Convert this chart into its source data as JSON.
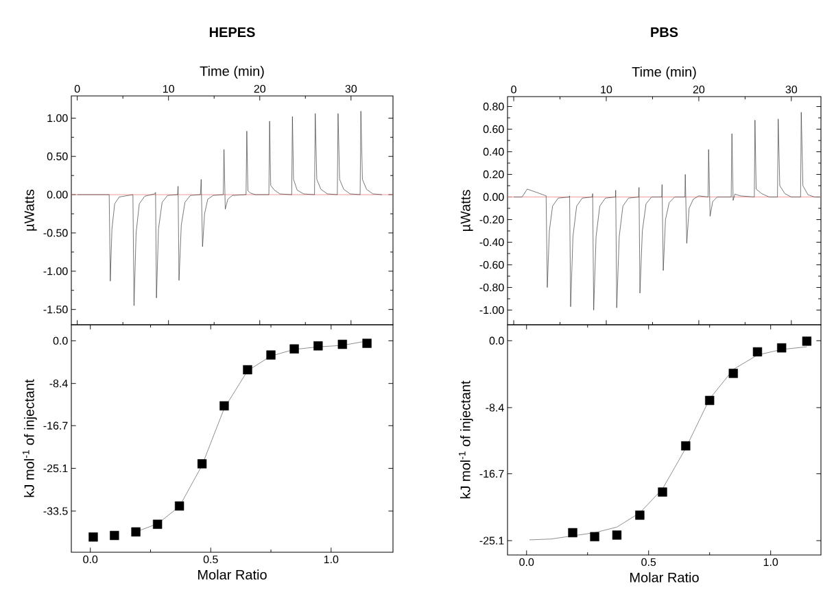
{
  "chart_data": [
    {
      "type": "line",
      "title": "HEPES",
      "xlabel": "Time (min)",
      "ylabel": "µWatts",
      "xlim": [
        -0.65,
        34.6
      ],
      "xticks": [
        0,
        10,
        20,
        30
      ],
      "ylim": [
        -1.7,
        1.29
      ],
      "yticks": [
        {
          "value": 1,
          "label": "1.00"
        },
        {
          "value": 0.5,
          "label": "0.50"
        },
        {
          "value": 0,
          "label": "0.00"
        },
        {
          "value": -0.5,
          "label": "-0.50"
        },
        {
          "value": -1,
          "label": "-1.00"
        },
        {
          "value": -1.5,
          "label": "-1.50"
        }
      ],
      "ref_lines": [
        {
          "axis": "y",
          "value": 0,
          "color": "#f08080"
        }
      ],
      "series": [
        {
          "color": "#333333",
          "x": [
            0,
            3.5,
            3.62,
            3.8,
            4.1,
            4.6,
            6.1,
            6.22,
            6.45,
            6.8,
            7.4,
            8.5,
            8.58,
            8.68,
            8.9,
            9.3,
            9.9,
            11.0,
            11.05,
            11.15,
            11.4,
            11.8,
            12.4,
            13.5,
            13.58,
            13.73,
            13.95,
            14.3,
            14.9,
            16.0,
            16.08,
            16.22,
            16.5,
            17.0,
            18.5,
            18.58,
            18.7,
            19.0,
            19.5,
            21.0,
            21.08,
            21.2,
            21.6,
            22.2,
            23.5,
            23.58,
            23.7,
            24.1,
            24.8,
            26.0,
            26.08,
            26.25,
            26.7,
            27.4,
            28.5,
            28.58,
            28.75,
            29.2,
            29.9,
            31.0,
            31.08,
            31.25,
            31.7,
            32.4,
            33.4
          ],
          "values": [
            0,
            0,
            -1.13,
            -0.45,
            -0.12,
            -0.03,
            0,
            -1.45,
            -0.5,
            -0.12,
            -0.02,
            0.01,
            0.03,
            -1.35,
            -0.45,
            -0.1,
            -0.01,
            0,
            0.11,
            -1.12,
            -0.4,
            -0.1,
            -0.01,
            0,
            0.2,
            -0.68,
            -0.25,
            -0.06,
            -0.01,
            0,
            0.59,
            -0.19,
            -0.06,
            -0.01,
            0,
            0.83,
            0.05,
            0.02,
            0,
            0,
            0.96,
            0.12,
            0.06,
            0.01,
            0,
            1.02,
            0.2,
            0.06,
            0.01,
            0,
            1.06,
            0.2,
            0.07,
            0.01,
            0,
            1.06,
            0.2,
            0.07,
            0.01,
            0,
            1.09,
            0.2,
            0.07,
            0.01,
            0
          ]
        }
      ]
    },
    {
      "type": "scatter",
      "xlabel": "Molar Ratio",
      "ylabel": "kJ mol$^{-1}$ of injectant",
      "xlim": [
        -0.079,
        1.257
      ],
      "xticks": [
        {
          "value": 0,
          "label": "0.0"
        },
        {
          "value": 0.5,
          "label": "0.5"
        },
        {
          "value": 1,
          "label": "1.0"
        }
      ],
      "ylim": [
        -41.6,
        3.15
      ],
      "yticks": [
        {
          "value": 0,
          "label": "0.0"
        },
        -8.4,
        -16.7,
        -25.1,
        -33.5
      ],
      "series": [
        {
          "type": "scatter",
          "marker": "square",
          "color": "#000000",
          "x": [
            0.012,
            0.1,
            0.189,
            0.279,
            0.37,
            0.464,
            0.556,
            0.653,
            0.75,
            0.847,
            0.946,
            1.047,
            1.149
          ],
          "values": [
            -38.6,
            -38.3,
            -37.6,
            -36.1,
            -32.5,
            -24.2,
            -12.8,
            -5.7,
            -2.8,
            -1.6,
            -1.0,
            -0.7,
            -0.5
          ]
        },
        {
          "type": "line",
          "color": "#555555",
          "x": [
            0.189,
            0.279,
            0.37,
            0.464,
            0.556,
            0.653,
            0.75,
            0.847,
            0.946,
            1.047,
            1.149
          ],
          "values": [
            -37.6,
            -36.0,
            -32.6,
            -24.5,
            -13.3,
            -5.9,
            -3.0,
            -1.7,
            -1.2,
            -0.9,
            -0.05
          ]
        }
      ]
    },
    {
      "type": "line",
      "title": "PBS",
      "xlabel": "Time (min)",
      "ylabel": "µWatts",
      "xlim": [
        -0.67,
        33.2
      ],
      "xticks": [
        0,
        10,
        20,
        30
      ],
      "ylim": [
        -1.13,
        0.888
      ],
      "yticks": [
        {
          "value": 0.8,
          "label": "0.80"
        },
        {
          "value": 0.6,
          "label": "0.60"
        },
        {
          "value": 0.4,
          "label": "0.40"
        },
        {
          "value": 0.2,
          "label": "0.20"
        },
        {
          "value": 0,
          "label": "0.00"
        },
        {
          "value": -0.2,
          "label": "-0.20"
        },
        {
          "value": -0.4,
          "label": "-0.40"
        },
        {
          "value": -0.6,
          "label": "-0.60"
        },
        {
          "value": -0.8,
          "label": "-0.80"
        },
        {
          "value": -1,
          "label": "-1.00"
        }
      ],
      "ref_lines": [
        {
          "axis": "y",
          "value": 0,
          "color": "#f08080"
        }
      ],
      "series": [
        {
          "color": "#333333",
          "x": [
            0,
            0.9,
            1.46,
            2.5,
            3.5,
            3.63,
            3.85,
            4.2,
            4.8,
            6.0,
            6.04,
            6.15,
            6.4,
            6.8,
            7.4,
            8.5,
            8.53,
            8.64,
            8.9,
            9.3,
            9.9,
            11.0,
            11.02,
            11.13,
            11.4,
            11.8,
            12.4,
            13.5,
            13.54,
            13.64,
            13.9,
            14.3,
            14.9,
            16.0,
            16.03,
            16.16,
            16.4,
            16.8,
            17.4,
            18.5,
            18.54,
            18.7,
            18.95,
            19.4,
            20.0,
            21.0,
            21.06,
            21.22,
            21.5,
            22.0,
            23.5,
            23.58,
            23.71,
            23.9,
            24.5,
            26.0,
            26.07,
            26.2,
            26.8,
            27.6,
            28.5,
            28.58,
            28.75,
            29.3,
            30.0,
            31.0,
            31.07,
            31.25,
            31.8,
            32.5,
            33.1
          ],
          "values": [
            0,
            0,
            0.07,
            0.04,
            0.01,
            -0.8,
            -0.3,
            -0.08,
            -0.01,
            0,
            0.01,
            -0.97,
            -0.35,
            -0.08,
            -0.01,
            0,
            0.03,
            -1.0,
            -0.35,
            -0.08,
            -0.01,
            0,
            0.06,
            -0.98,
            -0.35,
            -0.08,
            -0.01,
            0,
            0.085,
            -0.85,
            -0.3,
            -0.06,
            0,
            0,
            0.11,
            -0.65,
            -0.2,
            -0.05,
            0,
            0,
            0.2,
            -0.41,
            -0.1,
            -0.02,
            0.01,
            0,
            0.42,
            -0.17,
            -0.04,
            0,
            0,
            0.56,
            -0.03,
            0.025,
            0.01,
            0,
            0.68,
            0.07,
            0.03,
            0,
            0,
            0.69,
            0.1,
            0.03,
            0,
            0,
            0.75,
            0.1,
            0.02,
            0,
            0
          ]
        }
      ]
    },
    {
      "type": "scatter",
      "xlabel": "Molar Ratio",
      "ylabel": "kJ mol$^{-1}$ of injectant",
      "xlim": [
        -0.078,
        1.206
      ],
      "xticks": [
        {
          "value": 0,
          "label": "0.0"
        },
        {
          "value": 0.5,
          "label": "0.5"
        },
        {
          "value": 1,
          "label": "1.0"
        }
      ],
      "ylim": [
        -26.9,
        2.0
      ],
      "yticks": [
        {
          "value": 0,
          "label": "0.0"
        },
        -8.4,
        -16.7,
        -25.1
      ],
      "series": [
        {
          "type": "scatter",
          "marker": "square",
          "color": "#000000",
          "x": [
            0.189,
            0.279,
            0.37,
            0.464,
            0.557,
            0.652,
            0.75,
            0.847,
            0.946,
            1.045,
            1.148
          ],
          "values": [
            -24.1,
            -24.6,
            -24.4,
            -21.9,
            -19.0,
            -13.2,
            -7.5,
            -4.1,
            -1.4,
            -0.9,
            -0.06
          ]
        },
        {
          "type": "line",
          "color": "#555555",
          "x": [
            0.012,
            0.1,
            0.189,
            0.279,
            0.37,
            0.464,
            0.557,
            0.652,
            0.75,
            0.847,
            0.946,
            1.045,
            1.148
          ],
          "values": [
            -25.0,
            -24.9,
            -24.5,
            -24.1,
            -23.4,
            -21.6,
            -18.6,
            -13.5,
            -7.3,
            -3.6,
            -1.8,
            -1.1,
            -0.77
          ]
        }
      ]
    }
  ]
}
